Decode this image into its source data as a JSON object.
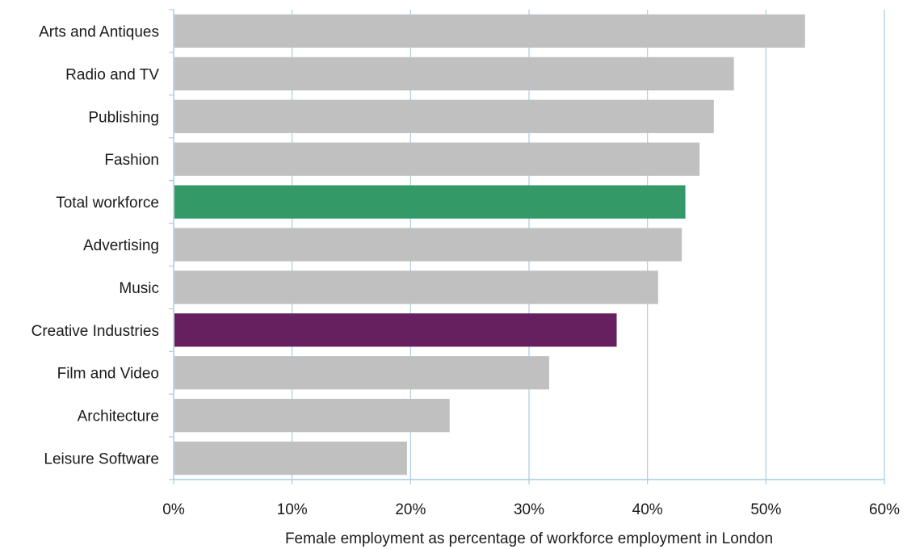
{
  "chart_data": {
    "type": "bar",
    "orientation": "horizontal",
    "categories": [
      "Arts and Antiques",
      "Radio and TV",
      "Publishing",
      "Fashion",
      "Total workforce",
      "Advertising",
      "Music",
      "Creative Industries",
      "Film and Video",
      "Architecture",
      "Leisure Software"
    ],
    "values": [
      0.533,
      0.473,
      0.456,
      0.444,
      0.432,
      0.429,
      0.409,
      0.374,
      0.317,
      0.233,
      0.197
    ],
    "colors": [
      "#c0c0c0",
      "#c0c0c0",
      "#c0c0c0",
      "#c0c0c0",
      "#339966",
      "#c0c0c0",
      "#c0c0c0",
      "#662060",
      "#c0c0c0",
      "#c0c0c0",
      "#c0c0c0"
    ],
    "xlabel": "Female employment as percentage of workforce employment in London",
    "ylabel": "",
    "xlim": [
      0,
      0.6
    ],
    "xticks": [
      0,
      0.1,
      0.2,
      0.3,
      0.4,
      0.5,
      0.6
    ],
    "xtick_labels": [
      "0%",
      "10%",
      "20%",
      "30%",
      "40%",
      "50%",
      "60%"
    ],
    "grid": "vertical",
    "legend": "none",
    "gridline_color": "#a9cce3"
  }
}
